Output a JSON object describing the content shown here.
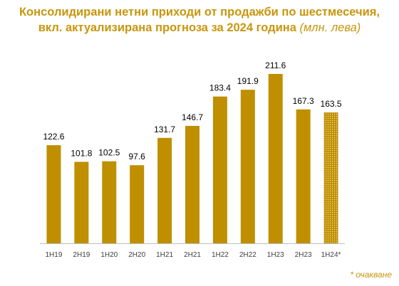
{
  "title": {
    "line1": "Консолидирани нетни приходи от продажби по шестмесечия,",
    "line2": "вкл. актуализирана прогноза за 2024 година",
    "unit": "(млн. лева)"
  },
  "footnote": "* очакване",
  "colors": {
    "bar": "#bf8f00",
    "title": "#c8960c",
    "axis": "#bfbfbf"
  },
  "chart_data": {
    "type": "bar",
    "categories": [
      "1H19",
      "2H19",
      "1H20",
      "2H20",
      "1H21",
      "2H21",
      "1H22",
      "2H22",
      "1H23",
      "2H23",
      "1H24*"
    ],
    "values": [
      122.6,
      101.8,
      102.5,
      97.6,
      131.7,
      146.7,
      183.4,
      191.9,
      211.6,
      167.3,
      163.5
    ],
    "value_labels": [
      "122.6",
      "101.8",
      "102.5",
      "97.6",
      "131.7",
      "146.7",
      "183.4",
      "191.9",
      "211.6",
      "167.3",
      "163.5"
    ],
    "forecast_index": 10,
    "ylim": [
      0,
      240
    ],
    "grid": false
  }
}
